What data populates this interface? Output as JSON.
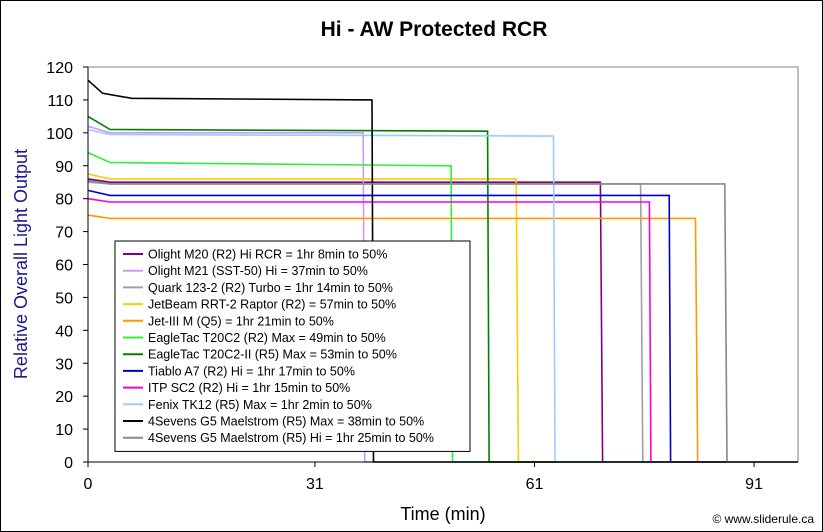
{
  "chart_data": {
    "type": "line",
    "title": "Hi - AW Protected RCR",
    "xlabel": "Time (min)",
    "ylabel": "Relative Overall Light Output",
    "xlim": [
      0,
      97
    ],
    "ylim": [
      0,
      120
    ],
    "x_ticks": [
      0,
      31,
      61,
      91
    ],
    "y_ticks": [
      0,
      10,
      20,
      30,
      40,
      50,
      60,
      70,
      80,
      90,
      100,
      110,
      120
    ],
    "grid": false,
    "legend": "bottom-left",
    "credit": "© www.sliderule.ca",
    "series": [
      {
        "name": "Olight M20 (R2) Hi RCR = 1hr 8min to 50%",
        "color": "#800080",
        "points": [
          [
            0,
            86
          ],
          [
            3,
            85
          ],
          [
            70,
            85
          ],
          [
            70.3,
            0
          ],
          [
            97,
            0
          ]
        ]
      },
      {
        "name": "Olight M21 (SST-50) Hi = 37min to 50%",
        "color": "#cc99ff",
        "points": [
          [
            0,
            102
          ],
          [
            3,
            100
          ],
          [
            37.6,
            100
          ],
          [
            37.8,
            0
          ],
          [
            97,
            0
          ]
        ]
      },
      {
        "name": "Quark 123-2 (R2) Turbo = 1hr 14min to 50%",
        "color": "#a0a0a0",
        "points": [
          [
            0,
            85
          ],
          [
            3,
            84.5
          ],
          [
            75.5,
            84.5
          ],
          [
            75.8,
            0
          ],
          [
            97,
            0
          ]
        ]
      },
      {
        "name": "JetBeam RRT-2 Raptor (R2) = 57min to 50%",
        "color": "#ffcc00",
        "points": [
          [
            0,
            87.5
          ],
          [
            3,
            86
          ],
          [
            58.5,
            86
          ],
          [
            58.8,
            0
          ],
          [
            97,
            0
          ]
        ]
      },
      {
        "name": "Jet-III M (Q5) = 1hr 21min to 50%",
        "color": "#ff9900",
        "points": [
          [
            0,
            75
          ],
          [
            3,
            74
          ],
          [
            83,
            74
          ],
          [
            83.3,
            0
          ],
          [
            97,
            0
          ]
        ]
      },
      {
        "name": "EagleTac T20C2 (R2) Max = 49min to 50%",
        "color": "#33ee33",
        "points": [
          [
            0,
            94
          ],
          [
            3,
            91
          ],
          [
            49.6,
            90
          ],
          [
            49.8,
            0
          ],
          [
            97,
            0
          ]
        ]
      },
      {
        "name": "EagleTac T20C2-II (R5) Max = 53min to 50%",
        "color": "#008000",
        "points": [
          [
            0,
            105
          ],
          [
            3,
            101
          ],
          [
            54.6,
            100.5
          ],
          [
            54.8,
            0
          ],
          [
            97,
            0
          ]
        ]
      },
      {
        "name": "Tiablo A7 (R2) Hi = 1hr 17min to 50%",
        "color": "#0000cc",
        "points": [
          [
            0,
            82.5
          ],
          [
            3,
            81
          ],
          [
            79.4,
            81
          ],
          [
            79.6,
            0
          ],
          [
            97,
            0
          ]
        ]
      },
      {
        "name": "ITP SC2 (R2) Hi = 1hr 15min to 50%",
        "color": "#ff00cc",
        "points": [
          [
            0,
            80
          ],
          [
            3,
            79
          ],
          [
            76.7,
            79
          ],
          [
            76.9,
            0
          ],
          [
            97,
            0
          ]
        ]
      },
      {
        "name": "Fenix TK12 (R5) Max = 1hr 2min to 50%",
        "color": "#99ccff",
        "points": [
          [
            0,
            101
          ],
          [
            3,
            99.5
          ],
          [
            63.6,
            99
          ],
          [
            63.8,
            0
          ],
          [
            97,
            0
          ]
        ]
      },
      {
        "name": "4Sevens G5 Maelstrom (R5) Max = 38min to 50%",
        "color": "#000000",
        "points": [
          [
            0,
            116
          ],
          [
            2,
            112
          ],
          [
            6,
            110.5
          ],
          [
            38.8,
            110
          ],
          [
            39,
            0
          ],
          [
            97,
            0
          ]
        ]
      },
      {
        "name": "4Sevens G5 Maelstrom (R5) Hi = 1hr 25min to 50%",
        "color": "#888888",
        "points": [
          [
            0,
            85.5
          ],
          [
            3,
            84.5
          ],
          [
            87,
            84.5
          ],
          [
            87.3,
            0
          ],
          [
            97,
            0
          ]
        ]
      }
    ]
  }
}
